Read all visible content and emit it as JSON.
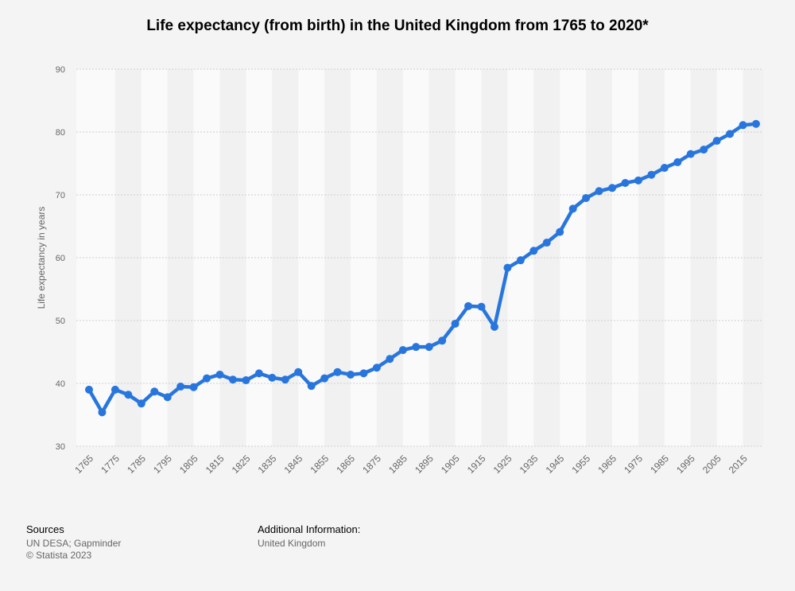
{
  "chart_data": {
    "type": "line",
    "title": "Life expectancy (from birth) in the United Kingdom from 1765 to 2020*",
    "xlabel": "",
    "ylabel": "Life expectancy in years",
    "ylim": [
      30,
      90
    ],
    "yticks": [
      30,
      40,
      50,
      60,
      70,
      80,
      90
    ],
    "xticks": [
      "1765",
      "1775",
      "1785",
      "1795",
      "1805",
      "1815",
      "1825",
      "1835",
      "1845",
      "1855",
      "1865",
      "1875",
      "1885",
      "1895",
      "1905",
      "1915",
      "1925",
      "1935",
      "1945",
      "1955",
      "1965",
      "1975",
      "1985",
      "1995",
      "2005",
      "2015"
    ],
    "grid": true,
    "color": "#2876dd",
    "x": [
      1765,
      1770,
      1775,
      1780,
      1785,
      1790,
      1795,
      1800,
      1805,
      1810,
      1815,
      1820,
      1825,
      1830,
      1835,
      1840,
      1845,
      1850,
      1855,
      1860,
      1865,
      1870,
      1875,
      1880,
      1885,
      1890,
      1895,
      1900,
      1905,
      1910,
      1915,
      1920,
      1925,
      1930,
      1935,
      1940,
      1945,
      1950,
      1955,
      1960,
      1965,
      1970,
      1975,
      1980,
      1985,
      1990,
      1995,
      2000,
      2005,
      2010,
      2015,
      2020
    ],
    "values": [
      39.0,
      35.4,
      39.0,
      38.2,
      36.8,
      38.7,
      37.8,
      39.5,
      39.4,
      40.8,
      41.4,
      40.6,
      40.5,
      41.6,
      40.9,
      40.6,
      41.8,
      39.6,
      40.8,
      41.8,
      41.4,
      41.6,
      42.5,
      43.9,
      45.3,
      45.8,
      45.8,
      46.8,
      49.5,
      52.3,
      52.2,
      49.0,
      58.4,
      59.6,
      61.1,
      62.4,
      64.1,
      67.8,
      69.5,
      70.6,
      71.1,
      71.9,
      72.3,
      73.2,
      74.3,
      75.2,
      76.5,
      77.2,
      78.6,
      79.7,
      81.1,
      81.3
    ]
  },
  "footer": {
    "sources_label": "Sources",
    "sources": [
      "UN DESA; Gapminder",
      "© Statista 2023"
    ],
    "additional_label": "Additional Information:",
    "additional": "United Kingdom"
  }
}
